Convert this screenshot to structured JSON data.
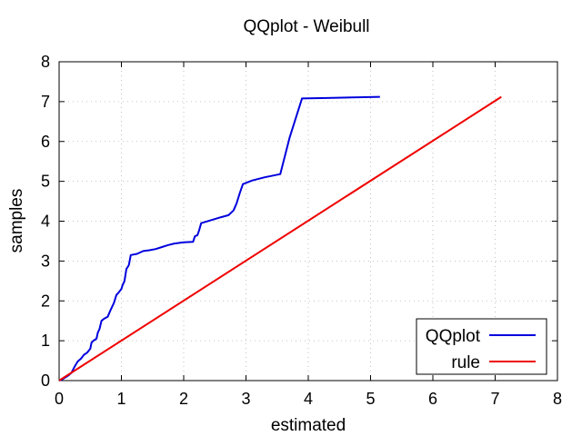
{
  "chart_data": {
    "type": "line",
    "title": "QQplot - Weibull",
    "xlabel": "estimated",
    "ylabel": "samples",
    "xlim": [
      0,
      8
    ],
    "ylim": [
      0,
      8
    ],
    "xticks": [
      "0",
      "1",
      "2",
      "3",
      "4",
      "5",
      "6",
      "7",
      "8"
    ],
    "yticks": [
      "0",
      "1",
      "2",
      "3",
      "4",
      "5",
      "6",
      "7",
      "8"
    ],
    "grid": true,
    "legend_position": "bottom-right",
    "series": [
      {
        "name": "QQplot",
        "color": "#0000dd",
        "points": [
          [
            0.0,
            0.0
          ],
          [
            0.05,
            0.03
          ],
          [
            0.1,
            0.08
          ],
          [
            0.15,
            0.13
          ],
          [
            0.2,
            0.2
          ],
          [
            0.25,
            0.35
          ],
          [
            0.3,
            0.48
          ],
          [
            0.35,
            0.55
          ],
          [
            0.4,
            0.65
          ],
          [
            0.45,
            0.7
          ],
          [
            0.5,
            0.8
          ],
          [
            0.52,
            0.95
          ],
          [
            0.55,
            1.0
          ],
          [
            0.6,
            1.05
          ],
          [
            0.62,
            1.2
          ],
          [
            0.65,
            1.3
          ],
          [
            0.68,
            1.5
          ],
          [
            0.72,
            1.55
          ],
          [
            0.78,
            1.6
          ],
          [
            0.82,
            1.75
          ],
          [
            0.88,
            1.95
          ],
          [
            0.92,
            2.15
          ],
          [
            0.95,
            2.2
          ],
          [
            1.0,
            2.3
          ],
          [
            1.02,
            2.4
          ],
          [
            1.05,
            2.5
          ],
          [
            1.08,
            2.8
          ],
          [
            1.1,
            2.85
          ],
          [
            1.12,
            2.9
          ],
          [
            1.15,
            3.15
          ],
          [
            1.25,
            3.18
          ],
          [
            1.35,
            3.25
          ],
          [
            1.45,
            3.27
          ],
          [
            1.55,
            3.3
          ],
          [
            1.65,
            3.35
          ],
          [
            1.75,
            3.4
          ],
          [
            1.85,
            3.44
          ],
          [
            2.0,
            3.47
          ],
          [
            2.15,
            3.48
          ],
          [
            2.18,
            3.62
          ],
          [
            2.22,
            3.65
          ],
          [
            2.25,
            3.78
          ],
          [
            2.28,
            3.95
          ],
          [
            2.45,
            4.03
          ],
          [
            2.6,
            4.1
          ],
          [
            2.72,
            4.15
          ],
          [
            2.8,
            4.27
          ],
          [
            2.85,
            4.45
          ],
          [
            2.9,
            4.7
          ],
          [
            2.95,
            4.93
          ],
          [
            3.1,
            5.02
          ],
          [
            3.3,
            5.1
          ],
          [
            3.55,
            5.18
          ],
          [
            3.7,
            6.1
          ],
          [
            3.9,
            7.08
          ],
          [
            4.3,
            7.09
          ],
          [
            5.15,
            7.12
          ]
        ]
      },
      {
        "name": "rule",
        "color": "#ee0000",
        "points": [
          [
            0,
            0
          ],
          [
            7.1,
            7.12
          ]
        ]
      }
    ]
  }
}
